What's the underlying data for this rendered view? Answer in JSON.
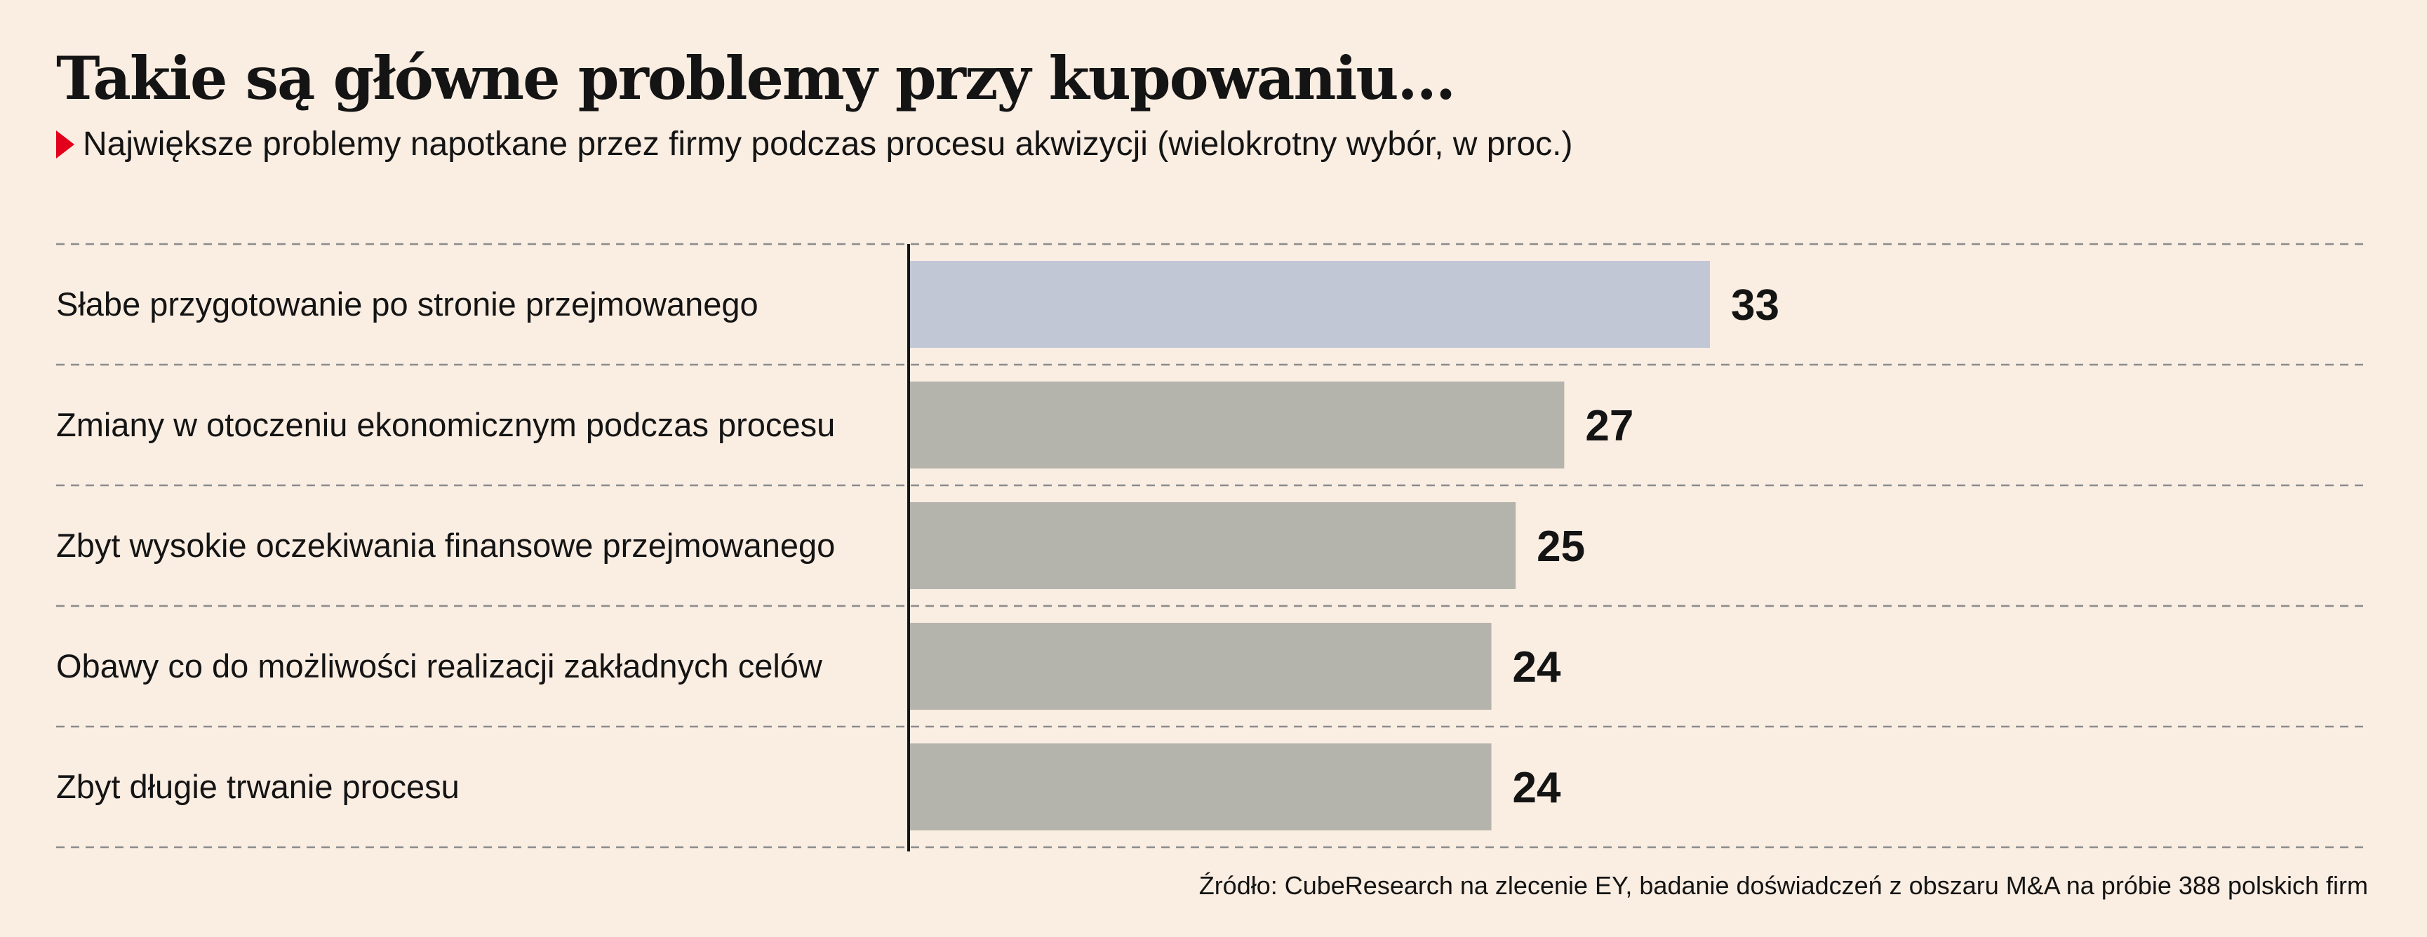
{
  "header": {
    "title": "Takie są główne problemy przy kupowaniu...",
    "subtitle": "Największe problemy napotkane przez firmy podczas procesu akwizycji (wielokrotny wybór, w proc.)"
  },
  "footer": {
    "source": "Źródło: CubeResearch na zlecenie EY, badanie doświadczeń z obszaru M&A na próbie 388 polskich firm"
  },
  "colors": {
    "background": "#faede2",
    "highlight_bar": "#c2c7d6",
    "default_bar": "#b4b4ac",
    "text": "#141414",
    "marker": "#e3001b",
    "gridline": "#8c8c8c"
  },
  "chart_data": {
    "type": "bar",
    "orientation": "horizontal",
    "categories": [
      "Słabe przygotowanie po stronie przejmowanego",
      "Zmiany w otoczeniu ekonomicznym podczas procesu",
      "Zbyt wysokie oczekiwania finansowe przejmowanego",
      "Obawy co do możliwości realizacji zakładnych celów",
      "Zbyt długie trwanie procesu"
    ],
    "values": [
      33,
      27,
      25,
      24,
      24
    ],
    "highlighted": [
      true,
      false,
      false,
      false,
      false
    ],
    "unit": "%",
    "xlim": [
      0,
      60
    ],
    "grid": false,
    "row_separators": "dashed"
  }
}
